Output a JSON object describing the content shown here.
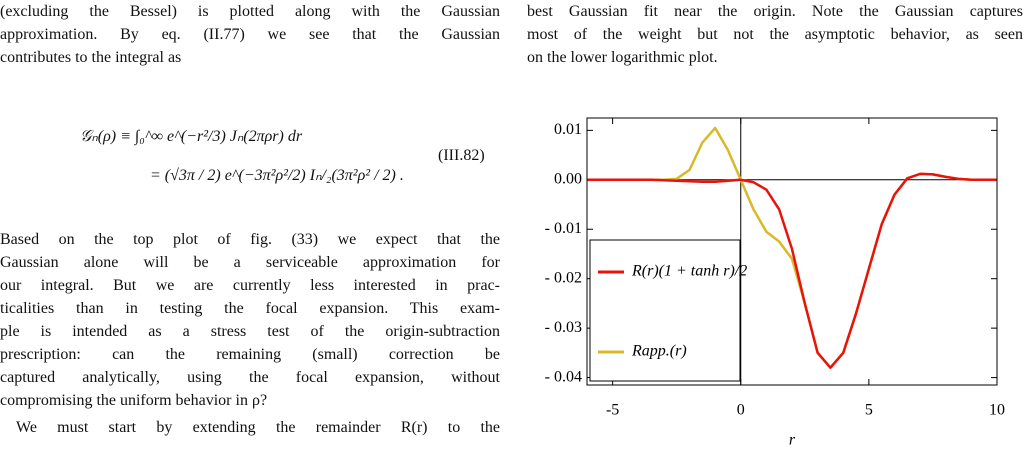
{
  "left_intro": [
    "(excluding the Bessel) is plotted along with the Gaussian",
    "approximation. By eq. (II.77) we see that the Gaussian",
    "contributes to the integral as"
  ],
  "equation": {
    "lines": [
      "𝒢ₙ(ρ) ≡ ∫₀^∞ e^(−r²/3) Jₙ(2πρr) dr",
      "= (√3π / 2) e^(−3π²ρ²/2) Iₙ/₂(3π²ρ² / 2) ."
    ],
    "number": "(III.82)"
  },
  "left_paragraph": [
    "Based on the top plot of fig. (33) we expect that the",
    "Gaussian alone will be a serviceable approximation for",
    "our integral. But we are currently less interested in prac-",
    "ticalities than in testing the focal expansion. This exam-",
    "ple is intended as a stress test of the origin-subtraction",
    "prescription: can the remaining (small) correction be",
    "captured analytically, using the focal expansion, without",
    "compromising the uniform behavior in ρ?"
  ],
  "left_paragraph_2": [
    "We must start by extending the remainder R(r) to the"
  ],
  "right_caption": [
    "best Gaussian fit near the origin. Note the Gaussian captures",
    "most of the weight but not the asymptotic behavior, as seen",
    "on the lower logarithmic plot."
  ],
  "chart_data": {
    "type": "line",
    "x_label": "r",
    "x": [
      -6,
      -5.5,
      -5,
      -4.5,
      -4,
      -3.5,
      -3,
      -2.5,
      -2,
      -1.5,
      -1,
      -0.5,
      0,
      0.5,
      1,
      1.5,
      2,
      2.5,
      3,
      3.5,
      4,
      4.5,
      5,
      5.5,
      6,
      6.5,
      7,
      7.5,
      8,
      8.5,
      9,
      9.5,
      10
    ],
    "series": [
      {
        "name": "R(r)(1 + tanh r)/2",
        "color": "#e8140c",
        "values": [
          0,
          0,
          0,
          0,
          0,
          0,
          -0.0001,
          -0.0002,
          -0.0003,
          -0.0004,
          -0.0004,
          -0.0002,
          0,
          -0.0005,
          -0.002,
          -0.006,
          -0.014,
          -0.025,
          -0.035,
          -0.038,
          -0.035,
          -0.027,
          -0.018,
          -0.009,
          -0.003,
          0.0003,
          0.0012,
          0.0011,
          0.0006,
          0.0002,
          0,
          0,
          0
        ]
      },
      {
        "name": "Rapp.(r)",
        "color": "#d9b92a",
        "values": [
          0,
          0,
          0,
          0,
          0,
          0,
          0,
          0.0002,
          0.002,
          0.0075,
          0.0105,
          0.006,
          0,
          -0.006,
          -0.0105,
          -0.0125,
          -0.016,
          -0.025,
          -0.035,
          -0.038,
          -0.035,
          -0.027,
          -0.018,
          -0.009,
          -0.003,
          0.0003,
          0.0012,
          0.0011,
          0.0006,
          0.0002,
          0,
          0,
          0
        ]
      }
    ],
    "xlim": [
      -6,
      10
    ],
    "xticks": [
      -5,
      0,
      5,
      10
    ],
    "ylim": [
      -0.0415,
      0.0125
    ],
    "yticks": [
      {
        "value": 0.01,
        "label": "0.01"
      },
      {
        "value": 0,
        "label": "0.00"
      },
      {
        "value": -0.01,
        "label": "- 0.01"
      },
      {
        "value": -0.02,
        "label": "- 0.02"
      },
      {
        "value": -0.03,
        "label": "- 0.03"
      },
      {
        "value": -0.04,
        "label": "- 0.04"
      }
    ],
    "origin_axes": true,
    "legend": "lower-left"
  }
}
